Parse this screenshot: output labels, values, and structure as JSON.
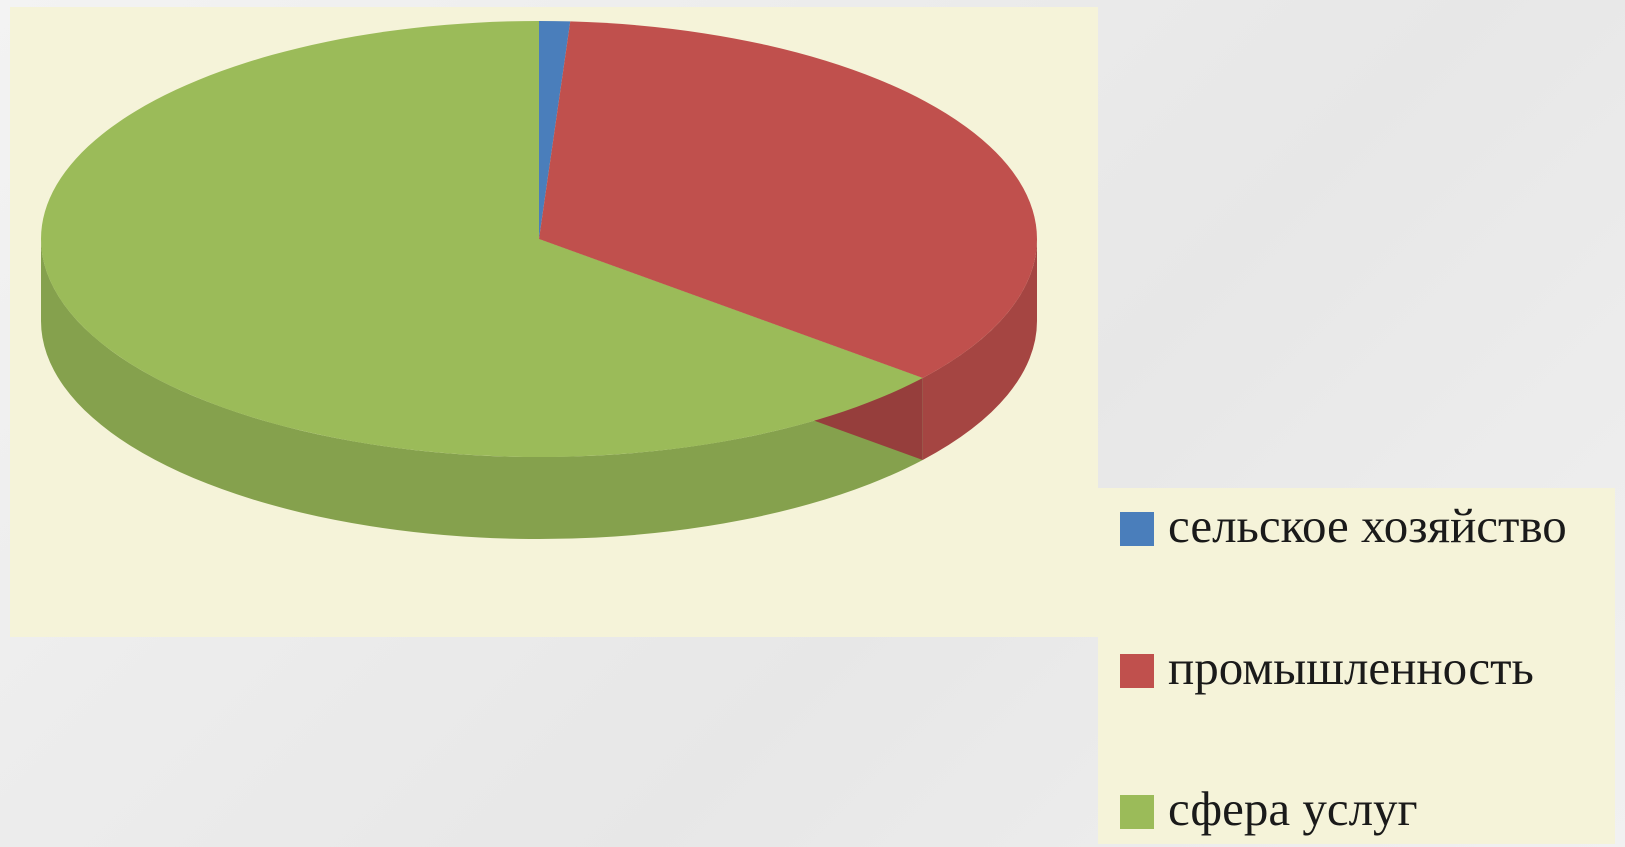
{
  "chart_data": {
    "type": "pie",
    "style": "3d",
    "categories": [
      "сельское хозяйство",
      "промышленность",
      "сфера услуг"
    ],
    "values": [
      1.0,
      35.0,
      64.0
    ],
    "colors": {
      "сельское хозяйство": "#4a7ebb",
      "промышленность": "#c0504d",
      "сфера услуг": "#9bbb59"
    },
    "legend_position": "bottom-right",
    "title": ""
  },
  "legend": {
    "items": [
      {
        "label": "сельское хозяйство",
        "color": "#4a7ebb"
      },
      {
        "label": "промышленность",
        "color": "#c0504d"
      },
      {
        "label": "сфера услуг",
        "color": "#9bbb59"
      }
    ]
  },
  "colors": {
    "background": "#f5f3d9",
    "label_text": "#1a1a1a"
  }
}
